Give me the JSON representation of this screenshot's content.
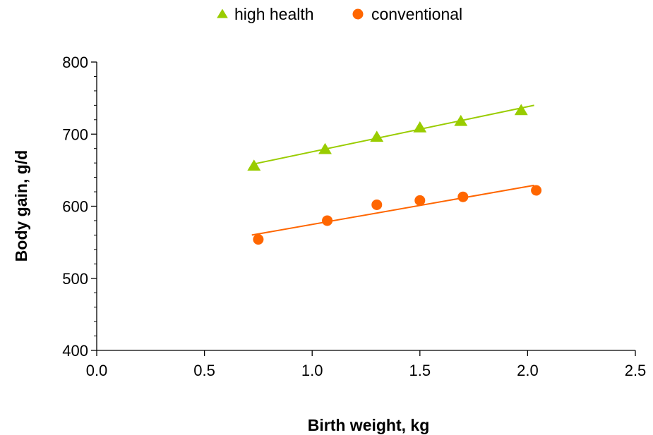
{
  "colors": {
    "high_health": "#99cc00",
    "conventional": "#ff6600",
    "axis": "#000000"
  },
  "chart_data": {
    "type": "scatter",
    "title": "",
    "xlabel": "Birth weight, kg",
    "ylabel": "Body gain, g/d",
    "xlim": [
      0.0,
      2.5
    ],
    "ylim": [
      400,
      800
    ],
    "x_ticks": [
      0.0,
      0.5,
      1.0,
      1.5,
      2.0,
      2.5
    ],
    "x_tick_labels": [
      "0.0",
      "0.5",
      "1.0",
      "1.5",
      "2.0",
      "2.5"
    ],
    "y_ticks": [
      400,
      500,
      600,
      700,
      800
    ],
    "y_tick_labels": [
      "400",
      "500",
      "600",
      "700",
      "800"
    ],
    "y_minor_step": 20,
    "grid": false,
    "legend_position": "top-center",
    "series": [
      {
        "name": "high health",
        "marker": "triangle",
        "color": "#99cc00",
        "points": [
          {
            "x": 0.73,
            "y": 656
          },
          {
            "x": 1.06,
            "y": 679
          },
          {
            "x": 1.3,
            "y": 696
          },
          {
            "x": 1.5,
            "y": 709
          },
          {
            "x": 1.69,
            "y": 718
          },
          {
            "x": 1.97,
            "y": 733
          }
        ],
        "trendline": [
          {
            "x": 0.72,
            "y": 658
          },
          {
            "x": 2.03,
            "y": 740
          }
        ]
      },
      {
        "name": "conventional",
        "marker": "circle",
        "color": "#ff6600",
        "points": [
          {
            "x": 0.75,
            "y": 554
          },
          {
            "x": 1.07,
            "y": 580
          },
          {
            "x": 1.3,
            "y": 602
          },
          {
            "x": 1.5,
            "y": 608
          },
          {
            "x": 1.7,
            "y": 613
          },
          {
            "x": 2.04,
            "y": 622
          }
        ],
        "trendline": [
          {
            "x": 0.72,
            "y": 560
          },
          {
            "x": 2.03,
            "y": 629
          }
        ]
      }
    ]
  }
}
